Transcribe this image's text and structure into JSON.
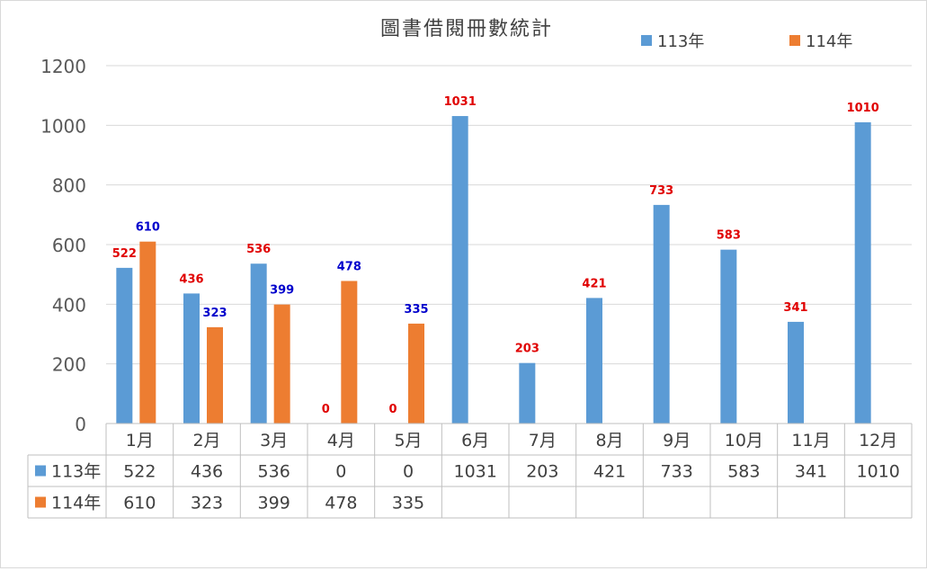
{
  "chart_data": {
    "type": "bar",
    "title": "圖書借閱冊數統計",
    "xlabel": "",
    "ylabel": "",
    "ylim": [
      0,
      1200
    ],
    "yticks": [
      0,
      200,
      400,
      600,
      800,
      1000,
      1200
    ],
    "grid": true,
    "legend_position": "top-right",
    "categories": [
      "1月",
      "2月",
      "3月",
      "4月",
      "5月",
      "6月",
      "7月",
      "8月",
      "9月",
      "10月",
      "11月",
      "12月"
    ],
    "series": [
      {
        "name": "113年",
        "color": "#5B9BD5",
        "label_color": "#E00000",
        "values": [
          522,
          436,
          536,
          0,
          0,
          1031,
          203,
          421,
          733,
          583,
          341,
          1010
        ]
      },
      {
        "name": "114年",
        "color": "#ED7D31",
        "label_color": "#0000CC",
        "values": [
          610,
          323,
          399,
          478,
          335,
          null,
          null,
          null,
          null,
          null,
          null,
          null
        ]
      }
    ],
    "data_table": true
  }
}
